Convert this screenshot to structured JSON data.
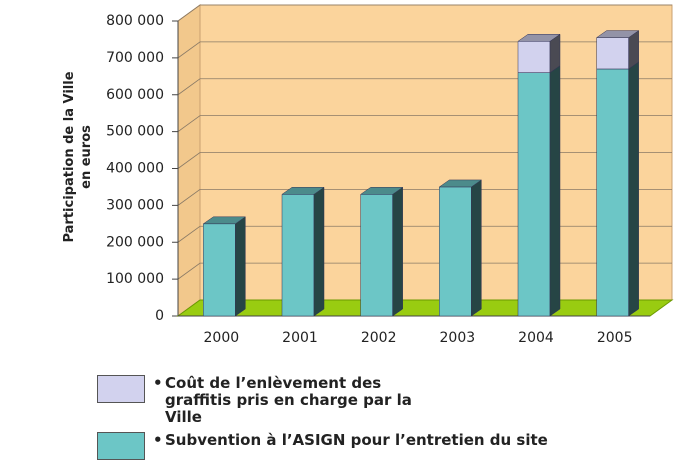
{
  "chart_data": {
    "type": "bar3d_stacked",
    "y_label": "Participation de la Ville en euros",
    "categories": [
      "2000",
      "2001",
      "2002",
      "2003",
      "2004",
      "2005"
    ],
    "series": [
      {
        "name": "Coût de l’enlèvement des graffitis pris en charge par la Ville",
        "color": "#d2d2ee",
        "values": [
          null,
          null,
          null,
          null,
          85000,
          85000
        ]
      },
      {
        "name": "Subvention à l’ASIGN pour l’entretien du site",
        "color": "#6cc6c6",
        "values": [
          250000,
          330000,
          330000,
          350000,
          660000,
          670000
        ]
      }
    ],
    "ylim": [
      0,
      800000
    ],
    "yticks": [
      {
        "value": 0,
        "label": "0"
      },
      {
        "value": 100000,
        "label": "100 000"
      },
      {
        "value": 200000,
        "label": "200 000"
      },
      {
        "value": 300000,
        "label": "300 000"
      },
      {
        "value": 400000,
        "label": "400 000"
      },
      {
        "value": 500000,
        "label": "500 000"
      },
      {
        "value": 600000,
        "label": "600 000"
      },
      {
        "value": 700000,
        "label": "700 000"
      },
      {
        "value": 800000,
        "label": "800 000"
      }
    ],
    "grid": true
  }
}
